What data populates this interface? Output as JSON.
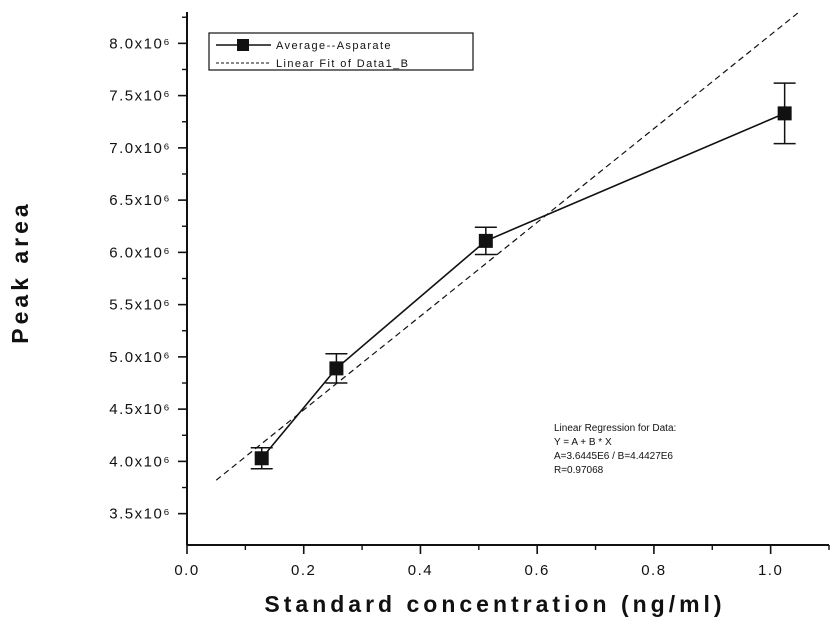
{
  "chart_data": {
    "type": "line",
    "xlabel": "Standard concentration (ng/ml)",
    "ylabel": "Peak area",
    "xlim": [
      0.0,
      1.1
    ],
    "ylim": [
      3200000,
      8300000
    ],
    "x_ticks": [
      0.0,
      0.2,
      0.4,
      0.6,
      0.8,
      1.0
    ],
    "x_tick_labels": [
      "0.0",
      "0.2",
      "0.4",
      "0.6",
      "0.8",
      "1.0"
    ],
    "y_ticks": [
      3500000,
      4000000,
      4500000,
      5000000,
      5500000,
      6000000,
      6500000,
      7000000,
      7500000,
      8000000
    ],
    "y_tick_labels": [
      "3.5x10⁶",
      "4.0x10⁶",
      "4.5x10⁶",
      "5.0x10⁶",
      "5.5x10⁶",
      "6.0x10⁶",
      "6.5x10⁶",
      "7.0x10⁶",
      "7.5x10⁶",
      "8.0x10⁶"
    ],
    "grid": false,
    "legend_position": "top-left",
    "series": [
      {
        "name": "Average--Asparate",
        "style": "solid line with square markers and error bars",
        "color": "#111111",
        "x": [
          0.128,
          0.256,
          0.512,
          1.024
        ],
        "y": [
          4030000,
          4890000,
          6110000,
          7330000
        ],
        "error": [
          100000,
          140000,
          130000,
          290000
        ]
      },
      {
        "name": "Linear Fit of Data1_B",
        "style": "dashed line",
        "color": "#111111",
        "x": [
          0.05,
          1.1
        ],
        "y": [
          3820000,
          8530000
        ]
      }
    ],
    "annotation": {
      "lines": [
        "Linear Regression for Data:",
        "Y = A + B * X",
        "A=3.6445E6 / B=4.4427E6",
        "R=0.97068"
      ]
    }
  }
}
